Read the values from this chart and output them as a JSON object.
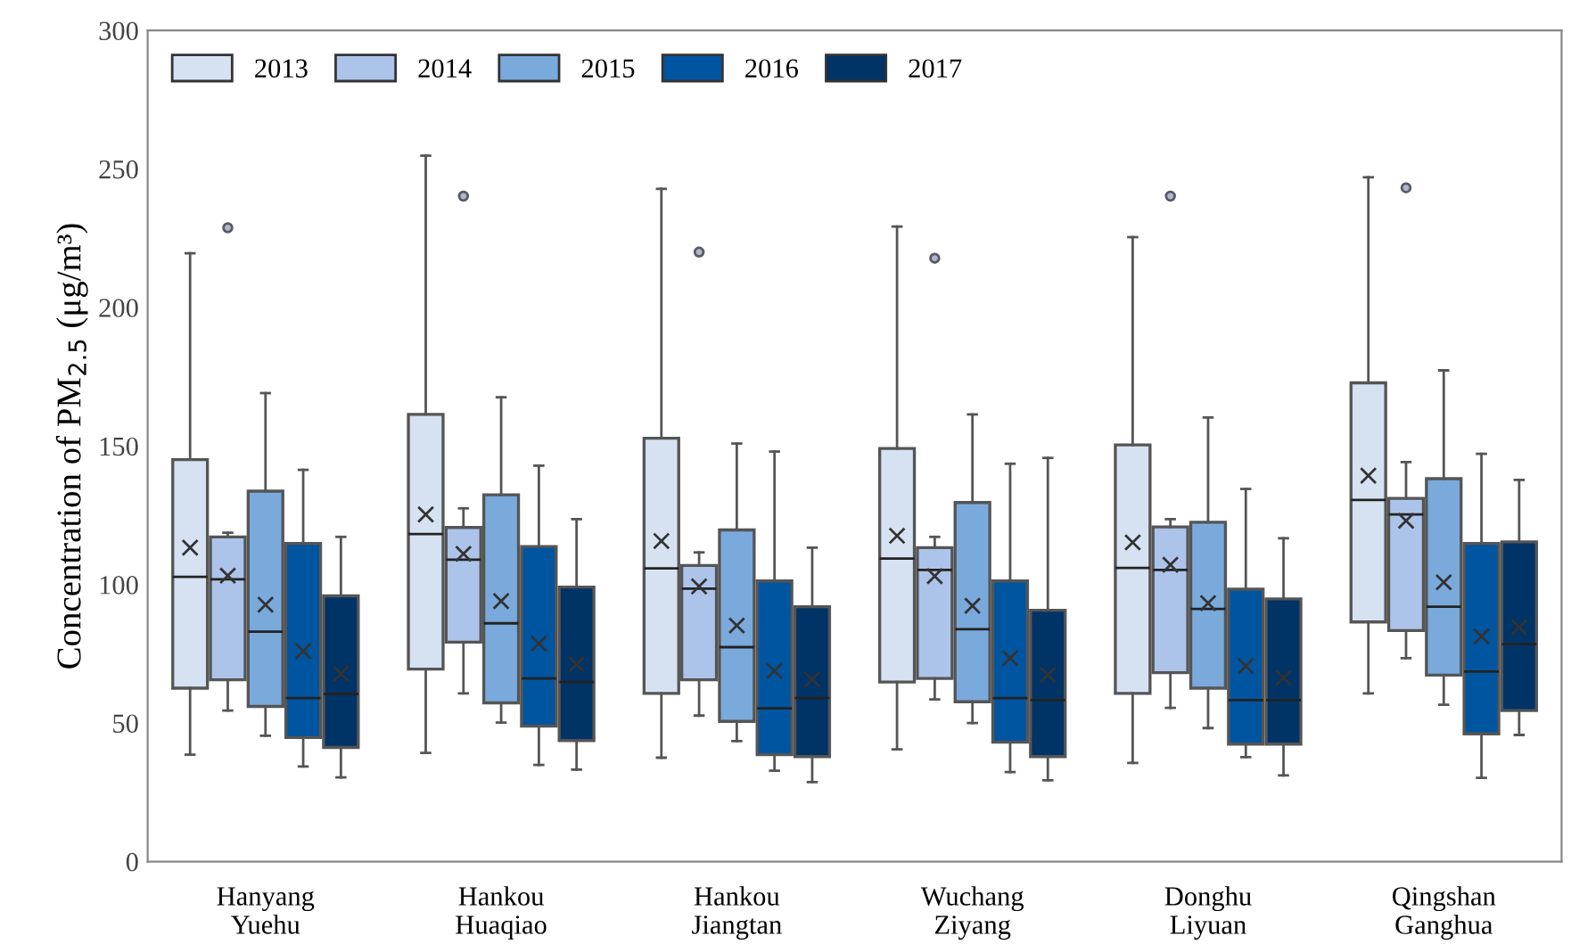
{
  "chart_data": {
    "type": "box",
    "ylabel": "Concentration of PM$_{2.5}$ (μg/m³)",
    "categories": [
      "Hanyang\nYuehu",
      "Hankou\nHuaqiao",
      "Hankou\nJiangtan",
      "Wuchang\nZiyang",
      "Donghu\nLiyuan",
      "Qingshan\nGanghua"
    ],
    "ylim": [
      0,
      300
    ],
    "yticks": [
      0,
      50,
      100,
      150,
      200,
      250,
      300
    ],
    "grid": false,
    "legend": "top left",
    "tick_labels": true,
    "series": [
      {
        "name": "2013",
        "color": "#d6e2f2",
        "boxes": [
          {
            "low": 38.6,
            "q1": 62.6,
            "median": 102.8,
            "q3": 145.1,
            "high": 219.6,
            "mean": 113.3
          },
          {
            "low": 39.2,
            "q1": 69.5,
            "median": 118.2,
            "q3": 161.4,
            "high": 254.8,
            "mean": 125.3
          },
          {
            "low": 37.5,
            "q1": 60.7,
            "median": 105.8,
            "q3": 152.8,
            "high": 242.8,
            "mean": 115.7
          },
          {
            "low": 40.5,
            "q1": 64.8,
            "median": 109.4,
            "q3": 149.1,
            "high": 229.2,
            "mean": 117.6
          },
          {
            "low": 35.6,
            "q1": 60.7,
            "median": 106,
            "q3": 150.4,
            "high": 225.4,
            "mean": 115.2
          },
          {
            "low": 60.7,
            "q1": 86.5,
            "median": 130.5,
            "q3": 172.8,
            "high": 247,
            "mean": 139.3
          }
        ]
      },
      {
        "name": "2014",
        "color": "#adc4ea",
        "boxes": [
          {
            "low": 54.5,
            "q1": 65.6,
            "median": 101.9,
            "q3": 117.2,
            "high": 118.7,
            "mean": 103.2,
            "outliers": [
              228.8
            ]
          },
          {
            "low": 60.7,
            "q1": 79.2,
            "median": 109,
            "q3": 120.6,
            "high": 127.5,
            "mean": 111.1,
            "outliers": [
              240.2
            ]
          },
          {
            "low": 52.7,
            "q1": 65.6,
            "median": 98.5,
            "q3": 106.9,
            "high": 111.6,
            "mean": 99.3,
            "outliers": [
              220
            ]
          },
          {
            "low": 58.5,
            "q1": 66.1,
            "median": 105.3,
            "q3": 113.3,
            "high": 117.2,
            "mean": 103,
            "outliers": [
              217.8
            ]
          },
          {
            "low": 55.5,
            "q1": 68.2,
            "median": 105.3,
            "q3": 120.8,
            "high": 123.6,
            "mean": 107.1,
            "outliers": [
              240.2
            ]
          },
          {
            "low": 73.4,
            "q1": 83.4,
            "median": 125.3,
            "q3": 131.1,
            "high": 144.2,
            "mean": 123,
            "outliers": [
              243.2
            ]
          }
        ]
      },
      {
        "name": "2015",
        "color": "#7aaadc",
        "boxes": [
          {
            "low": 45.4,
            "q1": 56,
            "median": 83,
            "q3": 133.7,
            "high": 169.1,
            "mean": 92.7
          },
          {
            "low": 50.2,
            "q1": 57.3,
            "median": 86,
            "q3": 132.4,
            "high": 167.6,
            "mean": 94
          },
          {
            "low": 43.5,
            "q1": 50.6,
            "median": 77.4,
            "q3": 119.7,
            "high": 150.9,
            "mean": 85.2
          },
          {
            "low": 50,
            "q1": 57.7,
            "median": 83.9,
            "q3": 129.6,
            "high": 161.4,
            "mean": 92.3
          },
          {
            "low": 48.2,
            "q1": 62.6,
            "median": 91.2,
            "q3": 122.5,
            "high": 160.3,
            "mean": 93.3
          },
          {
            "low": 56.6,
            "q1": 67.3,
            "median": 92,
            "q3": 138.2,
            "high": 177.3,
            "mean": 100.8
          }
        ]
      },
      {
        "name": "2016",
        "color": "#0055a0",
        "boxes": [
          {
            "low": 34.3,
            "q1": 44.8,
            "median": 59,
            "q3": 114.8,
            "high": 141.4,
            "mean": 76
          },
          {
            "low": 34.9,
            "q1": 48.9,
            "median": 66.1,
            "q3": 113.7,
            "high": 142.9,
            "mean": 78.7
          },
          {
            "low": 32.8,
            "q1": 38.6,
            "median": 55.3,
            "q3": 101.3,
            "high": 148,
            "mean": 68.8
          },
          {
            "low": 32.3,
            "q1": 43.1,
            "median": 59,
            "q3": 101.3,
            "high": 143.6,
            "mean": 73.4
          },
          {
            "low": 37.7,
            "q1": 42.4,
            "median": 58.3,
            "q3": 98.3,
            "high": 134.5,
            "mean": 70.6
          },
          {
            "low": 30.2,
            "q1": 46.1,
            "median": 68.6,
            "q3": 114.8,
            "high": 147.2,
            "mean": 81.3
          }
        ]
      },
      {
        "name": "2017",
        "color": "#003366",
        "boxes": [
          {
            "low": 30.4,
            "q1": 41.2,
            "median": 60.5,
            "q3": 95.9,
            "high": 117.2,
            "mean": 67.8
          },
          {
            "low": 33.2,
            "q1": 43.7,
            "median": 64.8,
            "q3": 99.1,
            "high": 123.6,
            "mean": 71.2
          },
          {
            "low": 28.7,
            "q1": 37.9,
            "median": 59,
            "q3": 92,
            "high": 113.3,
            "mean": 65.8
          },
          {
            "low": 29.3,
            "q1": 37.9,
            "median": 58.3,
            "q3": 90.7,
            "high": 145.7,
            "mean": 67.4
          },
          {
            "low": 31.1,
            "q1": 42.4,
            "median": 58.3,
            "q3": 94.8,
            "high": 116.7,
            "mean": 66.3
          },
          {
            "low": 45.7,
            "q1": 54.5,
            "median": 78.5,
            "q3": 115.4,
            "high": 137.8,
            "mean": 84.5
          }
        ]
      }
    ]
  }
}
